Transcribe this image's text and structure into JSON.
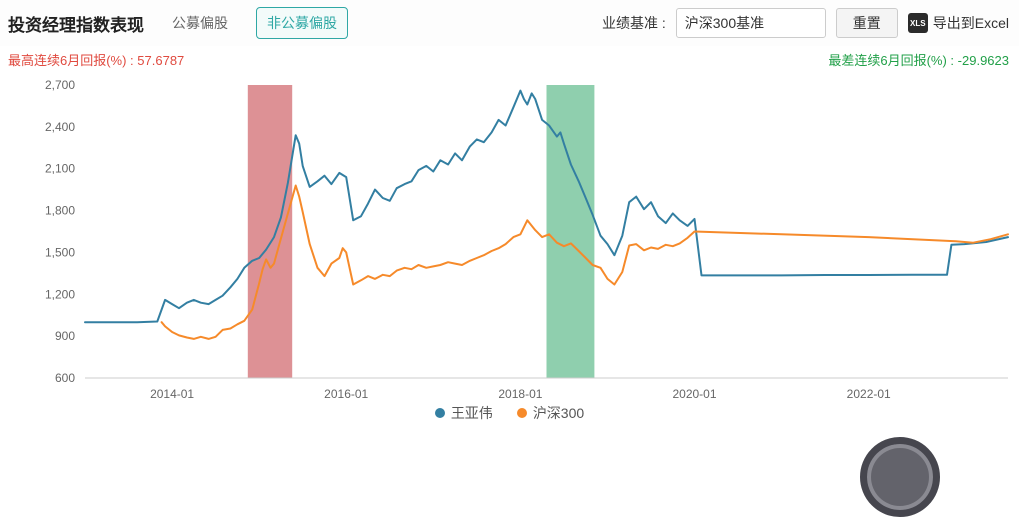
{
  "header": {
    "title": "投资经理指数表现",
    "tabs": [
      {
        "label": "公募偏股",
        "active": false
      },
      {
        "label": "非公募偏股",
        "active": true
      }
    ],
    "benchmark_label": "业绩基准 :",
    "benchmark_value": "沪深300基准",
    "reset_button": "重置",
    "export": {
      "icon_text": "XLS",
      "label": "导出到Excel"
    }
  },
  "stats": {
    "max_label": "最高连续6月回报(%) :",
    "max_value": "57.6787",
    "min_label": "最差连续6月回报(%) :",
    "min_value": "-29.9623"
  },
  "colors": {
    "accent_teal": "#2fa8a5",
    "series_blue": "#337fa2",
    "series_orange": "#f68a2a",
    "band_red": "#dd9195",
    "band_green": "#8fcfae",
    "stat_red": "#e04a3f",
    "stat_green": "#22a049",
    "axis_text": "#666666",
    "axis_line": "#cccccc"
  },
  "chart_data": {
    "type": "line",
    "title": "",
    "xlabel": "",
    "ylabel": "",
    "ylim": [
      600,
      2700
    ],
    "ytick_step": 300,
    "xticks": [
      2014,
      2016,
      2018,
      2020,
      2022
    ],
    "xtick_labels": [
      "2014-01",
      "2016-01",
      "2018-01",
      "2020-01",
      "2022-01"
    ],
    "grid": false,
    "legend_position": "bottom",
    "legend": [
      "王亚伟",
      "沪深300"
    ],
    "bands": [
      {
        "name": "highlight-band-red",
        "x0": 2014.87,
        "x1": 2015.38,
        "color": "#dd9195"
      },
      {
        "name": "highlight-band-green",
        "x0": 2018.3,
        "x1": 2018.85,
        "color": "#8fcfae"
      }
    ],
    "series": [
      {
        "name": "王亚伟",
        "color": "#337fa2",
        "points": [
          [
            2013.0,
            1000
          ],
          [
            2013.3,
            1000
          ],
          [
            2013.6,
            1000
          ],
          [
            2013.83,
            1005
          ],
          [
            2013.92,
            1160
          ],
          [
            2014.0,
            1130
          ],
          [
            2014.08,
            1100
          ],
          [
            2014.17,
            1140
          ],
          [
            2014.25,
            1160
          ],
          [
            2014.33,
            1140
          ],
          [
            2014.42,
            1130
          ],
          [
            2014.5,
            1160
          ],
          [
            2014.58,
            1190
          ],
          [
            2014.67,
            1250
          ],
          [
            2014.75,
            1310
          ],
          [
            2014.83,
            1390
          ],
          [
            2014.92,
            1440
          ],
          [
            2015.0,
            1460
          ],
          [
            2015.08,
            1520
          ],
          [
            2015.17,
            1610
          ],
          [
            2015.25,
            1750
          ],
          [
            2015.33,
            2000
          ],
          [
            2015.42,
            2340
          ],
          [
            2015.46,
            2280
          ],
          [
            2015.5,
            2120
          ],
          [
            2015.58,
            1970
          ],
          [
            2015.67,
            2010
          ],
          [
            2015.75,
            2050
          ],
          [
            2015.83,
            1990
          ],
          [
            2015.92,
            2070
          ],
          [
            2016.0,
            2040
          ],
          [
            2016.08,
            1730
          ],
          [
            2016.17,
            1760
          ],
          [
            2016.25,
            1850
          ],
          [
            2016.33,
            1950
          ],
          [
            2016.42,
            1890
          ],
          [
            2016.5,
            1870
          ],
          [
            2016.58,
            1960
          ],
          [
            2016.67,
            1990
          ],
          [
            2016.75,
            2010
          ],
          [
            2016.83,
            2090
          ],
          [
            2016.92,
            2120
          ],
          [
            2017.0,
            2080
          ],
          [
            2017.08,
            2160
          ],
          [
            2017.17,
            2130
          ],
          [
            2017.25,
            2210
          ],
          [
            2017.33,
            2160
          ],
          [
            2017.42,
            2260
          ],
          [
            2017.5,
            2310
          ],
          [
            2017.58,
            2290
          ],
          [
            2017.67,
            2360
          ],
          [
            2017.75,
            2450
          ],
          [
            2017.83,
            2410
          ],
          [
            2017.92,
            2540
          ],
          [
            2018.0,
            2660
          ],
          [
            2018.04,
            2600
          ],
          [
            2018.08,
            2560
          ],
          [
            2018.13,
            2640
          ],
          [
            2018.17,
            2600
          ],
          [
            2018.25,
            2450
          ],
          [
            2018.33,
            2410
          ],
          [
            2018.42,
            2330
          ],
          [
            2018.46,
            2360
          ],
          [
            2018.5,
            2280
          ],
          [
            2018.58,
            2130
          ],
          [
            2018.67,
            2010
          ],
          [
            2018.75,
            1890
          ],
          [
            2018.83,
            1770
          ],
          [
            2018.92,
            1620
          ],
          [
            2019.0,
            1560
          ],
          [
            2019.08,
            1480
          ],
          [
            2019.17,
            1620
          ],
          [
            2019.25,
            1860
          ],
          [
            2019.33,
            1900
          ],
          [
            2019.42,
            1810
          ],
          [
            2019.5,
            1860
          ],
          [
            2019.58,
            1760
          ],
          [
            2019.67,
            1710
          ],
          [
            2019.75,
            1780
          ],
          [
            2019.83,
            1730
          ],
          [
            2019.92,
            1690
          ],
          [
            2020.0,
            1740
          ],
          [
            2020.08,
            1335
          ],
          [
            2020.5,
            1335
          ],
          [
            2021.0,
            1335
          ],
          [
            2021.5,
            1338
          ],
          [
            2022.0,
            1338
          ],
          [
            2022.5,
            1340
          ],
          [
            2022.9,
            1340
          ],
          [
            2022.95,
            1555
          ],
          [
            2023.1,
            1560
          ],
          [
            2023.35,
            1575
          ],
          [
            2023.6,
            1610
          ]
        ]
      },
      {
        "name": "沪深300",
        "color": "#f68a2a",
        "points": [
          [
            2013.88,
            1000
          ],
          [
            2013.92,
            970
          ],
          [
            2014.0,
            930
          ],
          [
            2014.08,
            905
          ],
          [
            2014.17,
            890
          ],
          [
            2014.25,
            880
          ],
          [
            2014.33,
            895
          ],
          [
            2014.42,
            880
          ],
          [
            2014.5,
            895
          ],
          [
            2014.58,
            945
          ],
          [
            2014.67,
            955
          ],
          [
            2014.75,
            985
          ],
          [
            2014.83,
            1010
          ],
          [
            2014.92,
            1090
          ],
          [
            2015.0,
            1280
          ],
          [
            2015.04,
            1380
          ],
          [
            2015.08,
            1450
          ],
          [
            2015.13,
            1390
          ],
          [
            2015.17,
            1420
          ],
          [
            2015.25,
            1600
          ],
          [
            2015.33,
            1780
          ],
          [
            2015.42,
            1980
          ],
          [
            2015.46,
            1900
          ],
          [
            2015.5,
            1790
          ],
          [
            2015.58,
            1560
          ],
          [
            2015.67,
            1390
          ],
          [
            2015.75,
            1330
          ],
          [
            2015.83,
            1420
          ],
          [
            2015.92,
            1460
          ],
          [
            2015.96,
            1530
          ],
          [
            2016.0,
            1500
          ],
          [
            2016.08,
            1270
          ],
          [
            2016.17,
            1300
          ],
          [
            2016.25,
            1330
          ],
          [
            2016.33,
            1310
          ],
          [
            2016.42,
            1340
          ],
          [
            2016.5,
            1330
          ],
          [
            2016.58,
            1370
          ],
          [
            2016.67,
            1390
          ],
          [
            2016.75,
            1380
          ],
          [
            2016.83,
            1410
          ],
          [
            2016.92,
            1390
          ],
          [
            2017.0,
            1400
          ],
          [
            2017.08,
            1410
          ],
          [
            2017.17,
            1430
          ],
          [
            2017.25,
            1420
          ],
          [
            2017.33,
            1410
          ],
          [
            2017.42,
            1440
          ],
          [
            2017.5,
            1460
          ],
          [
            2017.58,
            1480
          ],
          [
            2017.67,
            1510
          ],
          [
            2017.75,
            1530
          ],
          [
            2017.83,
            1560
          ],
          [
            2017.92,
            1610
          ],
          [
            2018.0,
            1630
          ],
          [
            2018.08,
            1730
          ],
          [
            2018.17,
            1660
          ],
          [
            2018.25,
            1610
          ],
          [
            2018.33,
            1630
          ],
          [
            2018.42,
            1570
          ],
          [
            2018.5,
            1545
          ],
          [
            2018.58,
            1565
          ],
          [
            2018.67,
            1510
          ],
          [
            2018.75,
            1460
          ],
          [
            2018.83,
            1410
          ],
          [
            2018.92,
            1390
          ],
          [
            2019.0,
            1310
          ],
          [
            2019.08,
            1270
          ],
          [
            2019.17,
            1360
          ],
          [
            2019.25,
            1550
          ],
          [
            2019.33,
            1560
          ],
          [
            2019.42,
            1515
          ],
          [
            2019.5,
            1535
          ],
          [
            2019.58,
            1525
          ],
          [
            2019.67,
            1555
          ],
          [
            2019.75,
            1545
          ],
          [
            2019.83,
            1565
          ],
          [
            2019.92,
            1605
          ],
          [
            2020.0,
            1650
          ],
          [
            2021.0,
            1630
          ],
          [
            2022.0,
            1610
          ],
          [
            2023.0,
            1580
          ],
          [
            2023.2,
            1570
          ],
          [
            2023.4,
            1595
          ],
          [
            2023.6,
            1630
          ]
        ]
      }
    ]
  }
}
